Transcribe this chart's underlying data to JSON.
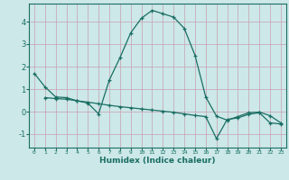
{
  "xlabel": "Humidex (Indice chaleur)",
  "background_color": "#cce8e8",
  "line_color": "#1a6e64",
  "grid_color": "#c8a0b0",
  "xlim": [
    -0.5,
    23.5
  ],
  "ylim": [
    -1.6,
    4.8
  ],
  "x_ticks": [
    0,
    1,
    2,
    3,
    4,
    5,
    6,
    7,
    8,
    9,
    10,
    11,
    12,
    13,
    14,
    15,
    16,
    17,
    18,
    19,
    20,
    21,
    22,
    23
  ],
  "y_ticks": [
    -1,
    0,
    1,
    2,
    3,
    4
  ],
  "curve1_x": [
    0,
    1,
    2,
    3,
    4,
    5,
    6,
    7,
    8,
    9,
    10,
    11,
    12,
    13,
    14,
    15,
    16,
    17,
    18,
    19,
    20,
    21,
    22,
    23
  ],
  "curve1_y": [
    1.7,
    1.1,
    0.65,
    0.62,
    0.48,
    0.38,
    -0.1,
    1.4,
    2.4,
    3.5,
    4.15,
    4.5,
    4.35,
    4.2,
    3.7,
    2.5,
    0.65,
    -0.2,
    -0.38,
    -0.22,
    -0.05,
    -0.02,
    -0.18,
    -0.5
  ],
  "curve2_x": [
    1,
    2,
    3,
    4,
    5,
    6,
    7,
    8,
    9,
    10,
    11,
    12,
    13,
    14,
    15,
    16,
    17,
    18,
    19,
    20,
    21,
    22,
    23
  ],
  "curve2_y": [
    0.62,
    0.58,
    0.55,
    0.48,
    0.42,
    0.35,
    0.28,
    0.22,
    0.17,
    0.12,
    0.07,
    0.02,
    -0.03,
    -0.1,
    -0.17,
    -0.22,
    -1.2,
    -0.35,
    -0.28,
    -0.12,
    -0.05,
    -0.5,
    -0.55
  ]
}
